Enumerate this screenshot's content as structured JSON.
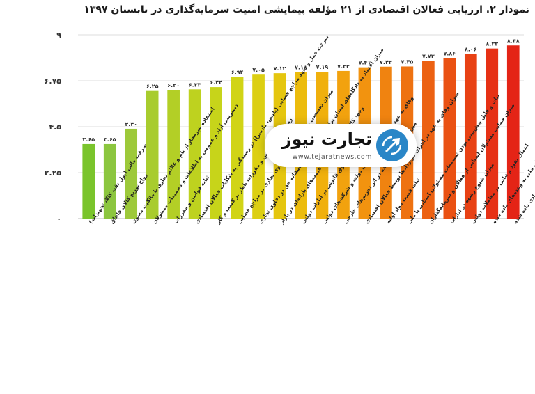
{
  "chart_data": {
    "type": "bar",
    "title": "نمودار ۲. ارزیابی فعالان اقتصادی از ۲۱ مؤلفه پیمایشی امنیت سرمایه‌گذاری در تابستان ۱۳۹۷",
    "xlabel": "",
    "ylabel": "",
    "ylim": [
      0,
      9
    ],
    "yticks": [
      0,
      2.25,
      4.5,
      6.75,
      9
    ],
    "ytick_labels": [
      "۰",
      "۲.۲۵",
      "۴.۵",
      "۶.۷۵",
      "۹"
    ],
    "grid": true,
    "legend": "none",
    "categories": [
      "سرقت مالی (پول نقد، کالا، تجهیزات)",
      "رواج توزیع کالای قاچاق",
      "استفاده غیرمجاز از نام و علائم تجاری یا مالکیت معنوی",
      "دسترسی آزاد و عمومی به اطلاعات و تصمیمات مسئولان",
      "ثبات قوانین و مقررات",
      "سرعت عمل و تعهد مراجع قضایی (پلیس، دادسرا) در رسیدگی به شکایات فعالان اقتصادی",
      "روشن بودن قوانین و مقررات ناظر بر کسب و کار",
      "میزان تخصصی بودن رسیدگی به دعاوی تجاری در مراجع قضایی",
      "میزان اعتماد به دادگاه‌های استان برای احقاق صحیح و منصفانه حق در دعاوی تجاری",
      "وجود کالا و خدمات دولتی به قیمت‌های یارانه‌ای در بازار",
      "احقاق حقوق قانونی در ادارات دولتی",
      "وفای به عهد در اجرای قراردادهای دولت و شرکت‌های دولتی",
      "میزان اختلال ایجاد شده در اثر تحریم‌های خارجی",
      "میزان وفای به عهد در اجرای قراردادها توسط فعالان اقتصادی",
      "ثبات قیمت مواد اولیه",
      "ثبات و قابل پیش‌بینی بودن تصمیمات مسئولان استانی یا ملی",
      "میزان حمایت مسئولان استانی از فعالان و سرمایه‌گذاران",
      "میزان شیوع رشوه در ادارات",
      "اعمال نفوذ و تبانی در معاملات دولتی",
      "عمل مسئولان ملی به وعده‌های داده شده",
      "عمل مسئولان استانی و محلی به وعده‌های اقتصادی داده شده"
    ],
    "values": [
      3.65,
      3.65,
      4.4,
      6.25,
      6.3,
      6.33,
      6.44,
      6.94,
      7.05,
      7.12,
      7.18,
      7.19,
      7.23,
      7.41,
      7.44,
      7.45,
      7.73,
      7.86,
      8.06,
      8.33,
      8.48
    ],
    "value_labels": [
      "۳.۶۵",
      "۳.۶۵",
      "۴.۴۰",
      "۶.۲۵",
      "۶.۳۰",
      "۶.۳۳",
      "۶.۴۴",
      "۶.۹۴",
      "۷.۰۵",
      "۷.۱۲",
      "۷.۱۸",
      "۷.۱۹",
      "۷.۲۳",
      "۷.۴۱",
      "۷.۴۴",
      "۷.۴۵",
      "۷.۷۳",
      "۷.۸۶",
      "۸.۰۶",
      "۸.۳۳",
      "۸.۴۸"
    ],
    "bar_colors": [
      "#7ac42c",
      "#8cc63f",
      "#9dc93a",
      "#a8cc2e",
      "#b3cf26",
      "#bed21f",
      "#c7d41a",
      "#d1d416",
      "#dccf12",
      "#e5c60f",
      "#ecbc0d",
      "#f0b00d",
      "#f2a20e",
      "#f2930f",
      "#f08310",
      "#ee7211",
      "#ec6112",
      "#ea5113",
      "#e84114",
      "#e63115",
      "#e42416"
    ]
  },
  "watermark": {
    "brand": "تجارت نیوز",
    "url": "www.tejaratnews.com",
    "icon": "tejaratnews-logo-icon",
    "icon_color": "#2a86c7"
  }
}
